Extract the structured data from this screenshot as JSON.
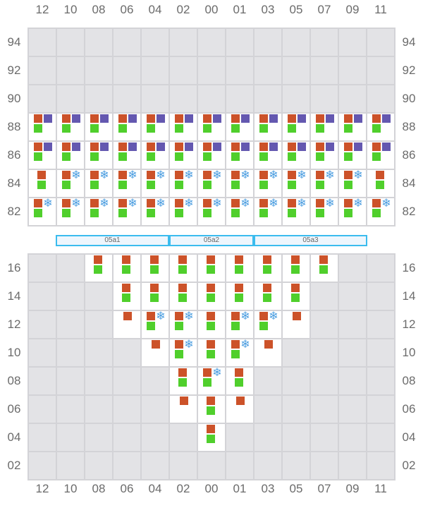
{
  "colors": {
    "orange": "#cc5229",
    "purple": "#6458b0",
    "green": "#50cf2c",
    "reefer": "#4a9de0",
    "empty_slot": "#e3e3e6",
    "hatch_border": "#3bbcee"
  },
  "legend_codes": {
    "O": "orange",
    "P": "purple",
    "G": "green",
    "R": "reefer-icon (snowflake)",
    "X": "no slot"
  },
  "columns": [
    "12",
    "10",
    "08",
    "06",
    "04",
    "02",
    "00",
    "01",
    "03",
    "05",
    "07",
    "09",
    "11"
  ],
  "deck": {
    "rows": [
      {
        "tier": "94",
        "cells": [
          "X",
          "X",
          "X",
          "X",
          "X",
          "X",
          "X",
          "X",
          "X",
          "X",
          "X",
          "X",
          "X"
        ]
      },
      {
        "tier": "92",
        "cells": [
          "X",
          "X",
          "X",
          "X",
          "X",
          "X",
          "X",
          "X",
          "X",
          "X",
          "X",
          "X",
          "X"
        ]
      },
      {
        "tier": "90",
        "cells": [
          "X",
          "X",
          "X",
          "X",
          "X",
          "X",
          "X",
          "X",
          "X",
          "X",
          "X",
          "X",
          "X"
        ]
      },
      {
        "tier": "88",
        "cells": [
          "OPG",
          "OPG",
          "OPG",
          "OPG",
          "OPG",
          "OPG",
          "OPG",
          "OPG",
          "OPG",
          "OPG",
          "OPG",
          "OPG",
          "OPG"
        ]
      },
      {
        "tier": "86",
        "cells": [
          "OPG",
          "OPG",
          "OPG",
          "OPG",
          "OPG",
          "OPG",
          "OPG",
          "OPG",
          "OPG",
          "OPG",
          "OPG",
          "OPG",
          "OPG"
        ]
      },
      {
        "tier": "84",
        "cells": [
          "OG",
          "ORG",
          "ORG",
          "ORG",
          "ORG",
          "ORG",
          "ORG",
          "ORG",
          "ORG",
          "ORG",
          "ORG",
          "ORG",
          "OG"
        ]
      },
      {
        "tier": "82",
        "cells": [
          "ORG",
          "ORG",
          "ORG",
          "ORG",
          "ORG",
          "ORG",
          "ORG",
          "ORG",
          "ORG",
          "ORG",
          "ORG",
          "ORG",
          "ORG"
        ]
      }
    ]
  },
  "hatches": [
    {
      "label": "05a1"
    },
    {
      "label": "05a2"
    },
    {
      "label": "05a3"
    }
  ],
  "hold": {
    "rows": [
      {
        "tier": "16",
        "cells": [
          "X",
          "X",
          "OG",
          "OG",
          "OG",
          "OG",
          "OG",
          "OG",
          "OG",
          "OG",
          "OG",
          "X",
          "X"
        ]
      },
      {
        "tier": "14",
        "cells": [
          "X",
          "X",
          "X",
          "OG",
          "OG",
          "OG",
          "OG",
          "OG",
          "OG",
          "OG",
          "X",
          "X",
          "X"
        ]
      },
      {
        "tier": "12",
        "cells": [
          "X",
          "X",
          "X",
          "O",
          "ORG",
          "ORG",
          "OG",
          "ORG",
          "ORG",
          "O",
          "X",
          "X",
          "X"
        ]
      },
      {
        "tier": "10",
        "cells": [
          "X",
          "X",
          "X",
          "X",
          "O",
          "ORG",
          "OG",
          "ORG",
          "O",
          "X",
          "X",
          "X",
          "X"
        ]
      },
      {
        "tier": "08",
        "cells": [
          "X",
          "X",
          "X",
          "X",
          "X",
          "OG",
          "ORG",
          "OG",
          "X",
          "X",
          "X",
          "X",
          "X"
        ]
      },
      {
        "tier": "06",
        "cells": [
          "X",
          "X",
          "X",
          "X",
          "X",
          "O",
          "OG",
          "O",
          "X",
          "X",
          "X",
          "X",
          "X"
        ]
      },
      {
        "tier": "04",
        "cells": [
          "X",
          "X",
          "X",
          "X",
          "X",
          "X",
          "OG",
          "X",
          "X",
          "X",
          "X",
          "X",
          "X"
        ]
      },
      {
        "tier": "02",
        "cells": [
          "X",
          "X",
          "X",
          "X",
          "X",
          "X",
          "X",
          "X",
          "X",
          "X",
          "X",
          "X",
          "X"
        ]
      }
    ]
  }
}
